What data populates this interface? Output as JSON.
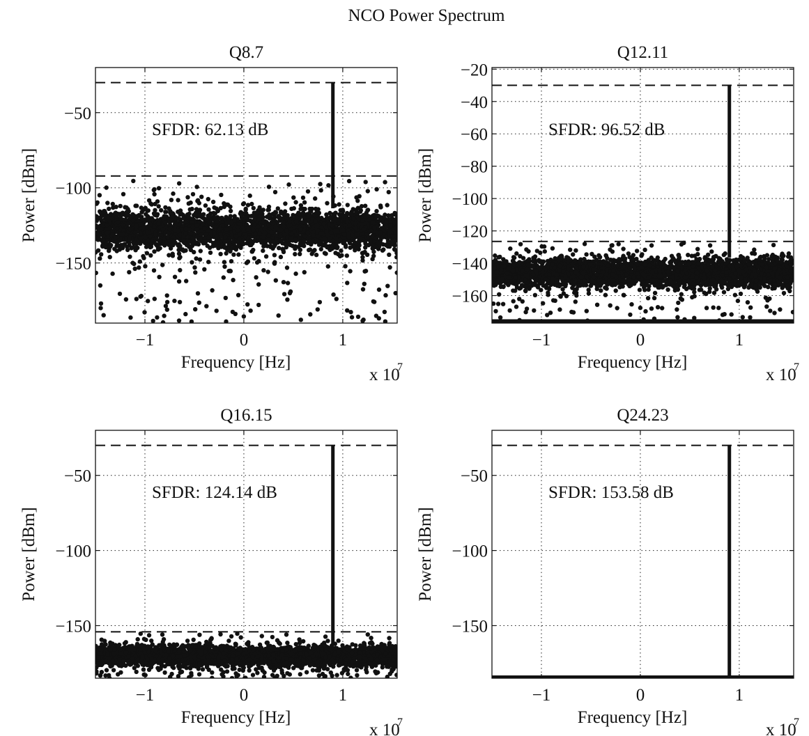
{
  "figure": {
    "title": "NCO Power Spectrum"
  },
  "chart_data": [
    {
      "type": "scatter",
      "title": "Q8.7",
      "xlabel": "Frequency [Hz]",
      "ylabel": "Power [dBm]",
      "x_multiplier": "x 10",
      "x_multiplier_exp": "7",
      "xlim": [
        -1.5,
        1.55
      ],
      "ylim": [
        -190,
        -20
      ],
      "xticks": [
        -1,
        0,
        1
      ],
      "xtick_labels": [
        "−1",
        "0",
        "1"
      ],
      "yticks": [
        -50,
        -100,
        -150
      ],
      "ytick_labels": [
        "−50",
        "−100",
        "−150"
      ],
      "grid": true,
      "annotation": "SFDR: 62.13 dB",
      "carrier": {
        "frequency": 0.9,
        "power": -30
      },
      "dashed_levels": [
        -30,
        -92.13
      ],
      "noise_floor": {
        "mean": -128,
        "spread": 12,
        "outlier_min": -190,
        "outlier_max": -95
      },
      "series": [
        {
          "values_description": "noise floor points",
          "y_mean": -128
        }
      ]
    },
    {
      "type": "scatter",
      "title": "Q12.11",
      "xlabel": "Frequency [Hz]",
      "ylabel": "Power [dBm]",
      "x_multiplier": "x 10",
      "x_multiplier_exp": "7",
      "xlim": [
        -1.5,
        1.55
      ],
      "ylim": [
        -177,
        -19
      ],
      "xticks": [
        -1,
        0,
        1
      ],
      "xtick_labels": [
        "−1",
        "0",
        "1"
      ],
      "yticks": [
        -20,
        -40,
        -60,
        -80,
        -100,
        -120,
        -140,
        -160
      ],
      "ytick_labels": [
        "−20",
        "−40",
        "−60",
        "−80",
        "−100",
        "−120",
        "−140",
        "−160"
      ],
      "grid": true,
      "annotation": "SFDR: 96.52 dB",
      "carrier": {
        "frequency": 0.9,
        "power": -30
      },
      "dashed_levels": [
        -30,
        -126.52
      ],
      "noise_floor": {
        "mean": -146,
        "spread": 8,
        "outlier_min": -177,
        "outlier_max": -127
      },
      "series": [
        {
          "values_description": "noise floor points",
          "y_mean": -146
        }
      ]
    },
    {
      "type": "scatter",
      "title": "Q16.15",
      "xlabel": "Frequency [Hz]",
      "ylabel": "Power [dBm]",
      "x_multiplier": "x 10",
      "x_multiplier_exp": "7",
      "xlim": [
        -1.5,
        1.55
      ],
      "ylim": [
        -185,
        -20
      ],
      "xticks": [
        -1,
        0,
        1
      ],
      "xtick_labels": [
        "−1",
        "0",
        "1"
      ],
      "yticks": [
        -50,
        -100,
        -150
      ],
      "ytick_labels": [
        "−50",
        "−100",
        "−150"
      ],
      "grid": true,
      "annotation": "SFDR: 124.14 dB",
      "carrier": {
        "frequency": 0.9,
        "power": -30
      },
      "dashed_levels": [
        -30,
        -154.14
      ],
      "noise_floor": {
        "mean": -170,
        "spread": 6,
        "outlier_min": -185,
        "outlier_max": -155
      },
      "series": [
        {
          "values_description": "noise floor points",
          "y_mean": -170
        }
      ]
    },
    {
      "type": "scatter",
      "title": "Q24.23",
      "xlabel": "Frequency [Hz]",
      "ylabel": "Power [dBm]",
      "x_multiplier": "x 10",
      "x_multiplier_exp": "7",
      "xlim": [
        -1.5,
        1.55
      ],
      "ylim": [
        -185,
        -20
      ],
      "xticks": [
        -1,
        0,
        1
      ],
      "xtick_labels": [
        "−1",
        "0",
        "1"
      ],
      "yticks": [
        -50,
        -100,
        -150
      ],
      "ytick_labels": [
        "−50",
        "−100",
        "−150"
      ],
      "grid": true,
      "annotation": "SFDR: 153.58 dB",
      "carrier": {
        "frequency": 0.9,
        "power": -30
      },
      "dashed_levels": [
        -30
      ],
      "noise_floor": {
        "mean": -185,
        "spread": 0,
        "outlier_min": -185,
        "outlier_max": -185
      },
      "series": [
        {
          "values_description": "noise floor points",
          "y_mean": -185
        }
      ]
    }
  ]
}
